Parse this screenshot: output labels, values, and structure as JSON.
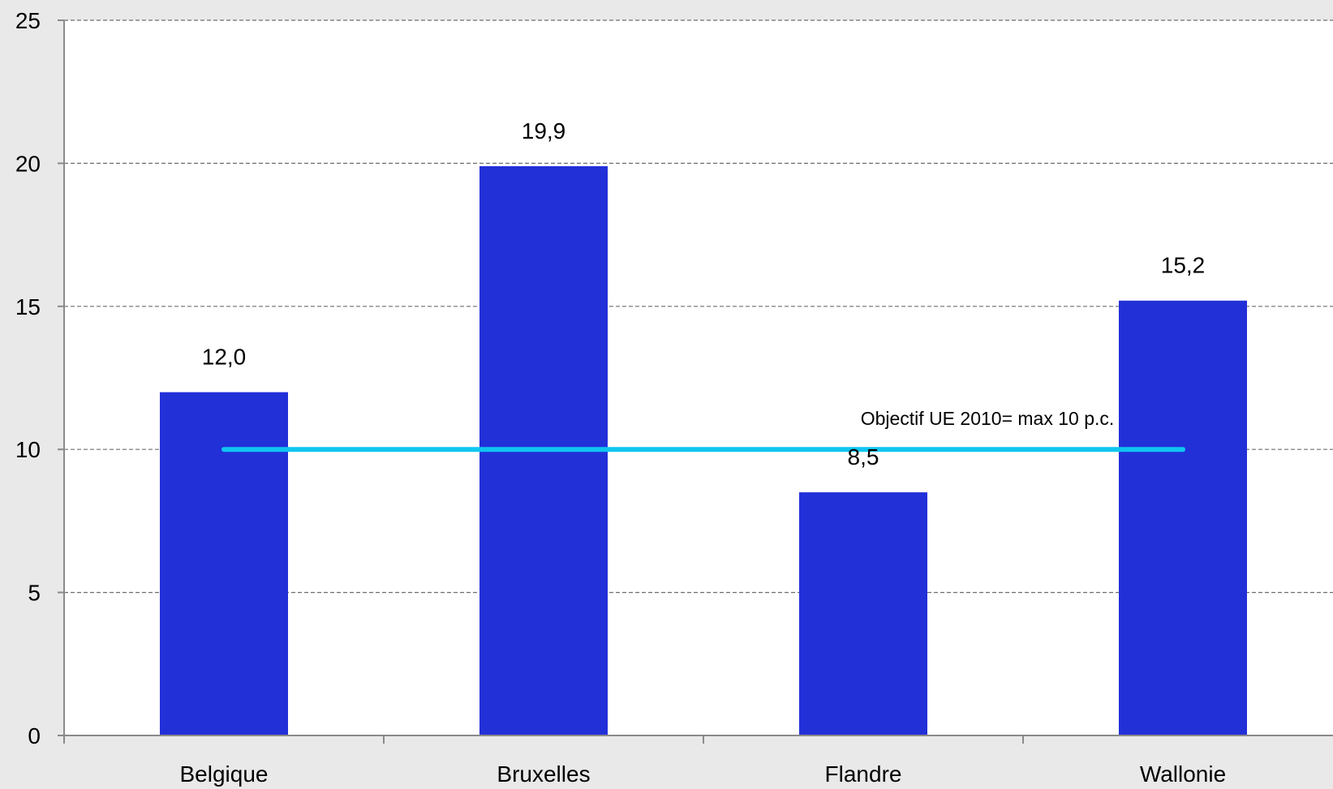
{
  "chart_data": {
    "type": "bar",
    "title": "",
    "xlabel": "",
    "ylabel": "",
    "categories": [
      "Belgique",
      "Bruxelles",
      "Flandre",
      "Wallonie"
    ],
    "values": [
      12.0,
      19.9,
      8.5,
      15.2
    ],
    "value_labels": [
      "12,0",
      "19,9",
      "8,5",
      "15,2"
    ],
    "ylim": [
      0,
      25
    ],
    "yticks": [
      0,
      5,
      10,
      15,
      20,
      25
    ],
    "grid": true,
    "legend": "none",
    "bar_color": "#2230d8",
    "reference_line": {
      "value": 10,
      "label": "Objectif UE 2010= max 10 p.c.",
      "color": "#0fc6f0"
    }
  }
}
